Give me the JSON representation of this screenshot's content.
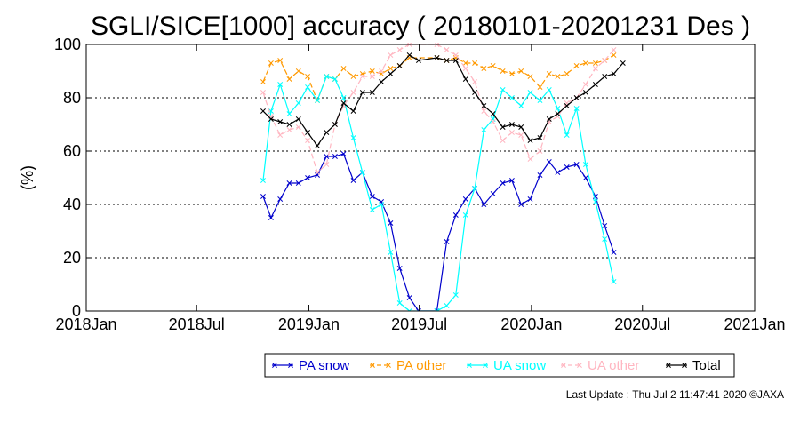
{
  "chart_data": {
    "type": "line",
    "title": "SGLI/SICE[1000] accuracy ( 20180101-20201231 Des )",
    "ylabel": "(%)",
    "xlabel": "",
    "ylim": [
      0,
      100
    ],
    "xlim": [
      "2018-01-01",
      "2021-01-01"
    ],
    "yticks": [
      0,
      20,
      40,
      60,
      80,
      100
    ],
    "xticks": [
      {
        "date": "2018-01-01",
        "label": "2018Jan"
      },
      {
        "date": "2018-07-01",
        "label": "2018Jul"
      },
      {
        "date": "2019-01-01",
        "label": "2019Jan"
      },
      {
        "date": "2019-07-01",
        "label": "2019Jul"
      },
      {
        "date": "2020-01-01",
        "label": "2020Jan"
      },
      {
        "date": "2020-07-01",
        "label": "2020Jul"
      },
      {
        "date": "2021-01-01",
        "label": "2021Jan"
      }
    ],
    "grid": "horizontal dashed",
    "legend_position": "bottom",
    "series": [
      {
        "name": "PA snow",
        "color": "#0000cc",
        "dashed": false,
        "points": [
          [
            "2018-10-18",
            43
          ],
          [
            "2018-10-31",
            35
          ],
          [
            "2018-11-15",
            42
          ],
          [
            "2018-11-30",
            48
          ],
          [
            "2018-12-15",
            48
          ],
          [
            "2018-12-30",
            50
          ],
          [
            "2019-01-15",
            51
          ],
          [
            "2019-01-30",
            58
          ],
          [
            "2019-02-13",
            58
          ],
          [
            "2019-02-27",
            59
          ],
          [
            "2019-03-15",
            49
          ],
          [
            "2019-03-30",
            52
          ],
          [
            "2019-04-15",
            43
          ],
          [
            "2019-04-30",
            41
          ],
          [
            "2019-05-15",
            33
          ],
          [
            "2019-05-30",
            16
          ],
          [
            "2019-06-15",
            5
          ],
          [
            "2019-06-30",
            0
          ],
          [
            "2019-07-30",
            0
          ],
          [
            "2019-08-15",
            26
          ],
          [
            "2019-08-30",
            36
          ],
          [
            "2019-09-15",
            42
          ],
          [
            "2019-09-30",
            46
          ],
          [
            "2019-10-15",
            40
          ],
          [
            "2019-10-30",
            44
          ],
          [
            "2019-11-15",
            48
          ],
          [
            "2019-11-30",
            49
          ],
          [
            "2019-12-15",
            40
          ],
          [
            "2019-12-30",
            42
          ],
          [
            "2020-01-15",
            51
          ],
          [
            "2020-01-30",
            56
          ],
          [
            "2020-02-13",
            52
          ],
          [
            "2020-02-28",
            54
          ],
          [
            "2020-03-15",
            55
          ],
          [
            "2020-03-30",
            50
          ],
          [
            "2020-04-15",
            43
          ],
          [
            "2020-04-30",
            32
          ],
          [
            "2020-05-15",
            22
          ]
        ]
      },
      {
        "name": "PA other",
        "color": "#ff9900",
        "dashed": true,
        "points": [
          [
            "2018-10-18",
            86
          ],
          [
            "2018-10-31",
            93
          ],
          [
            "2018-11-15",
            94
          ],
          [
            "2018-11-30",
            87
          ],
          [
            "2018-12-15",
            90
          ],
          [
            "2018-12-30",
            88
          ],
          [
            "2019-01-15",
            79
          ],
          [
            "2019-01-30",
            88
          ],
          [
            "2019-02-13",
            87
          ],
          [
            "2019-02-27",
            91
          ],
          [
            "2019-03-15",
            88
          ],
          [
            "2019-03-30",
            89
          ],
          [
            "2019-04-15",
            90
          ],
          [
            "2019-04-30",
            89
          ],
          [
            "2019-05-15",
            91
          ],
          [
            "2019-05-30",
            92
          ],
          [
            "2019-06-15",
            95
          ],
          [
            "2019-07-30",
            95
          ],
          [
            "2019-08-15",
            94
          ],
          [
            "2019-08-30",
            95
          ],
          [
            "2019-09-15",
            93
          ],
          [
            "2019-09-30",
            93
          ],
          [
            "2019-10-15",
            91
          ],
          [
            "2019-10-30",
            92
          ],
          [
            "2019-11-15",
            90
          ],
          [
            "2019-11-30",
            89
          ],
          [
            "2019-12-15",
            90
          ],
          [
            "2019-12-30",
            88
          ],
          [
            "2020-01-15",
            84
          ],
          [
            "2020-01-30",
            89
          ],
          [
            "2020-02-13",
            88
          ],
          [
            "2020-02-28",
            89
          ],
          [
            "2020-03-15",
            92
          ],
          [
            "2020-03-30",
            93
          ],
          [
            "2020-04-15",
            93
          ],
          [
            "2020-04-30",
            94
          ],
          [
            "2020-05-15",
            96
          ]
        ]
      },
      {
        "name": "UA snow",
        "color": "#00ffff",
        "dashed": false,
        "points": [
          [
            "2018-10-18",
            49
          ],
          [
            "2018-10-31",
            75
          ],
          [
            "2018-11-15",
            85
          ],
          [
            "2018-11-30",
            74
          ],
          [
            "2018-12-15",
            78
          ],
          [
            "2018-12-30",
            84
          ],
          [
            "2019-01-15",
            79
          ],
          [
            "2019-01-30",
            88
          ],
          [
            "2019-02-13",
            87
          ],
          [
            "2019-02-27",
            80
          ],
          [
            "2019-03-15",
            65
          ],
          [
            "2019-03-30",
            52
          ],
          [
            "2019-04-15",
            38
          ],
          [
            "2019-04-30",
            40
          ],
          [
            "2019-05-15",
            22
          ],
          [
            "2019-05-30",
            3
          ],
          [
            "2019-06-15",
            0
          ],
          [
            "2019-07-30",
            0
          ],
          [
            "2019-08-15",
            2
          ],
          [
            "2019-08-30",
            6
          ],
          [
            "2019-09-15",
            36
          ],
          [
            "2019-09-30",
            46
          ],
          [
            "2019-10-15",
            68
          ],
          [
            "2019-10-30",
            72
          ],
          [
            "2019-11-15",
            83
          ],
          [
            "2019-11-30",
            80
          ],
          [
            "2019-12-15",
            77
          ],
          [
            "2019-12-30",
            82
          ],
          [
            "2020-01-15",
            79
          ],
          [
            "2020-01-30",
            83
          ],
          [
            "2020-02-13",
            76
          ],
          [
            "2020-02-28",
            66
          ],
          [
            "2020-03-15",
            76
          ],
          [
            "2020-03-30",
            55
          ],
          [
            "2020-04-15",
            41
          ],
          [
            "2020-04-30",
            27
          ],
          [
            "2020-05-15",
            11
          ]
        ]
      },
      {
        "name": "UA other",
        "color": "#ffb6c1",
        "dashed": true,
        "points": [
          [
            "2018-10-18",
            82
          ],
          [
            "2018-10-31",
            73
          ],
          [
            "2018-11-15",
            66
          ],
          [
            "2018-11-30",
            68
          ],
          [
            "2018-12-15",
            69
          ],
          [
            "2018-12-30",
            64
          ],
          [
            "2019-01-15",
            52
          ],
          [
            "2019-01-30",
            55
          ],
          [
            "2019-02-13",
            70
          ],
          [
            "2019-02-27",
            77
          ],
          [
            "2019-03-15",
            82
          ],
          [
            "2019-03-30",
            88
          ],
          [
            "2019-04-15",
            88
          ],
          [
            "2019-04-30",
            90
          ],
          [
            "2019-05-15",
            96
          ],
          [
            "2019-05-30",
            98
          ],
          [
            "2019-06-15",
            100
          ],
          [
            "2019-07-30",
            100
          ],
          [
            "2019-08-15",
            98
          ],
          [
            "2019-08-30",
            96
          ],
          [
            "2019-09-15",
            91
          ],
          [
            "2019-09-30",
            86
          ],
          [
            "2019-10-15",
            75
          ],
          [
            "2019-10-30",
            71
          ],
          [
            "2019-11-15",
            64
          ],
          [
            "2019-11-30",
            67
          ],
          [
            "2019-12-15",
            66
          ],
          [
            "2019-12-30",
            57
          ],
          [
            "2020-01-15",
            60
          ],
          [
            "2020-01-30",
            71
          ],
          [
            "2020-02-13",
            73
          ],
          [
            "2020-02-28",
            78
          ],
          [
            "2020-03-15",
            80
          ],
          [
            "2020-03-30",
            85
          ],
          [
            "2020-04-15",
            91
          ],
          [
            "2020-04-30",
            94
          ],
          [
            "2020-05-15",
            98
          ]
        ]
      },
      {
        "name": "Total",
        "color": "#000000",
        "dashed": false,
        "points": [
          [
            "2018-10-18",
            75
          ],
          [
            "2018-10-31",
            72
          ],
          [
            "2018-11-15",
            71
          ],
          [
            "2018-11-30",
            70
          ],
          [
            "2018-12-15",
            72
          ],
          [
            "2018-12-30",
            67
          ],
          [
            "2019-01-15",
            62
          ],
          [
            "2019-01-30",
            67
          ],
          [
            "2019-02-13",
            70
          ],
          [
            "2019-02-27",
            78
          ],
          [
            "2019-03-15",
            75
          ],
          [
            "2019-03-30",
            82
          ],
          [
            "2019-04-15",
            82
          ],
          [
            "2019-04-30",
            86
          ],
          [
            "2019-05-15",
            89
          ],
          [
            "2019-05-30",
            92
          ],
          [
            "2019-06-15",
            96
          ],
          [
            "2019-06-30",
            94
          ],
          [
            "2019-07-30",
            95
          ],
          [
            "2019-08-15",
            94
          ],
          [
            "2019-08-30",
            94
          ],
          [
            "2019-09-15",
            87
          ],
          [
            "2019-09-30",
            82
          ],
          [
            "2019-10-15",
            77
          ],
          [
            "2019-10-30",
            74
          ],
          [
            "2019-11-15",
            69
          ],
          [
            "2019-11-30",
            70
          ],
          [
            "2019-12-15",
            69
          ],
          [
            "2019-12-30",
            64
          ],
          [
            "2020-01-15",
            65
          ],
          [
            "2020-01-30",
            72
          ],
          [
            "2020-02-13",
            74
          ],
          [
            "2020-02-28",
            77
          ],
          [
            "2020-03-15",
            80
          ],
          [
            "2020-03-30",
            82
          ],
          [
            "2020-04-15",
            85
          ],
          [
            "2020-04-30",
            88
          ],
          [
            "2020-05-15",
            89
          ],
          [
            "2020-05-30",
            93
          ]
        ]
      }
    ]
  },
  "footer": {
    "last_update": "Last Update : Thu Jul  2 11:47:41 2020  ©JAXA"
  }
}
